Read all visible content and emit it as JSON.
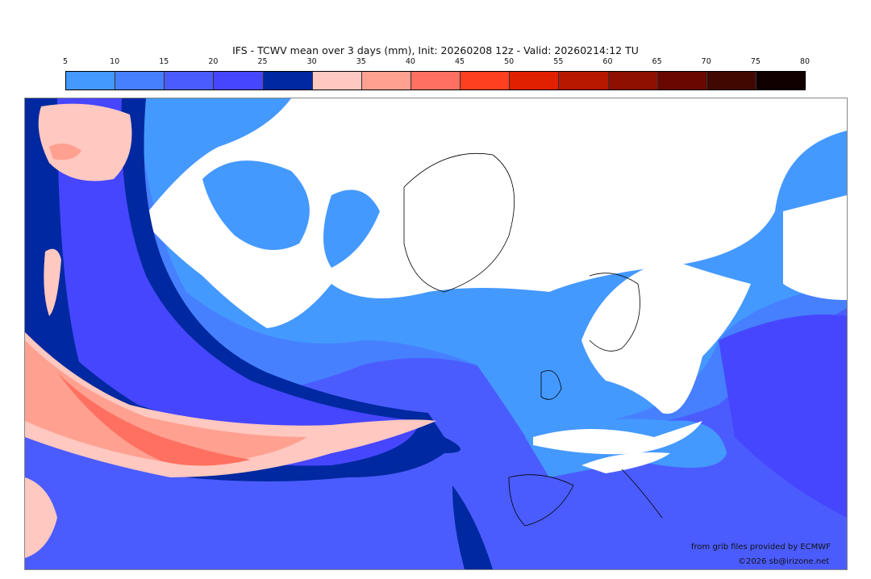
{
  "title": "IFS - TCWV mean over 3 days (mm), Init: 20260208 12z - Valid: 20260214:12 TU",
  "colorbar": {
    "ticks": [
      "5",
      "10",
      "15",
      "20",
      "25",
      "30",
      "35",
      "40",
      "45",
      "50",
      "55",
      "60",
      "65",
      "70",
      "75",
      "80"
    ],
    "colors": [
      "#4499ff",
      "#4680ff",
      "#4b5cff",
      "#4646ff",
      "#0028a0",
      "#ffc8c0",
      "#ffa090",
      "#ff7060",
      "#ff4020",
      "#e02000",
      "#b81800",
      "#901000",
      "#680800",
      "#400800",
      "#100000"
    ]
  },
  "credits": {
    "source": "from grib files provided by ECMWF",
    "copyright": "©2026 sb@irizone.net"
  }
}
